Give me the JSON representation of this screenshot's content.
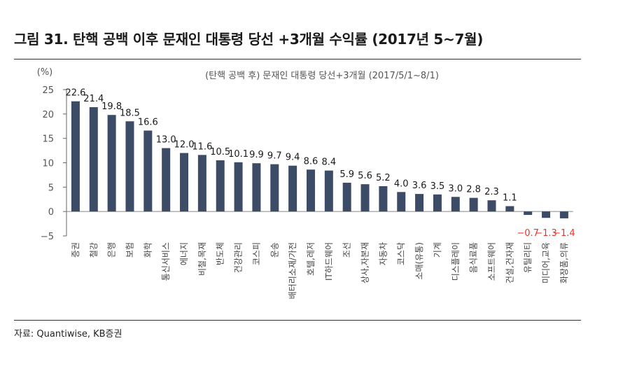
{
  "figure": {
    "title": "그림 31. 탄핵 공백 이후 문재인 대통령 당선 +3개월 수익률 (2017년 5~7월)",
    "source": "자료: Quantiwise, KB증권"
  },
  "colors": {
    "bar": "#3c4b66",
    "negative_label": "#e8332a",
    "axis_text": "#555555"
  },
  "chart_data": {
    "type": "bar",
    "title": "(탄핵 공백 후) 문재인 대통령 당선+3개월 (2017/5/1~8/1)",
    "ylabel": "(%)",
    "xlabel": "",
    "ylim": [
      -5,
      25
    ],
    "yticks": [
      25,
      20,
      15,
      10,
      5,
      0,
      -5
    ],
    "ytick_labels": [
      "25",
      "20",
      "15",
      "10",
      "5",
      "0",
      "−5"
    ],
    "grid": false,
    "legend": "none",
    "categories": [
      "증권",
      "철강",
      "은행",
      "보험",
      "화학",
      "통신서비스",
      "에너지",
      "비철,목재",
      "반도체",
      "건강관리",
      "코스피",
      "운송",
      "배터리소재/가전",
      "호텔,레저",
      "IT하드웨어",
      "조선",
      "상사,자본재",
      "자동차",
      "코스닥",
      "소매(유통)",
      "기계",
      "디스플레이",
      "음식료품",
      "소프트웨어",
      "건설,건자재",
      "유틸리티",
      "미디어,교육",
      "화장품,의류"
    ],
    "values": [
      22.6,
      21.4,
      19.8,
      18.5,
      16.6,
      13.0,
      12.0,
      11.6,
      10.5,
      10.1,
      9.9,
      9.7,
      9.4,
      8.6,
      8.4,
      5.9,
      5.6,
      5.2,
      4.0,
      3.6,
      3.5,
      3.0,
      2.8,
      2.3,
      1.1,
      -0.7,
      -1.3,
      -1.4
    ],
    "value_labels": [
      "22.6",
      "21.4",
      "19.8",
      "18.5",
      "16.6",
      "13.0",
      "12.0",
      "11.6",
      "10.5",
      "10.1",
      "9.9",
      "9.7",
      "9.4",
      "8.6",
      "8.4",
      "5.9",
      "5.6",
      "5.2",
      "4.0",
      "3.6",
      "3.5",
      "3.0",
      "2.8",
      "2.3",
      "1.1",
      "−0.7",
      "−1.3",
      "−1.4"
    ]
  }
}
